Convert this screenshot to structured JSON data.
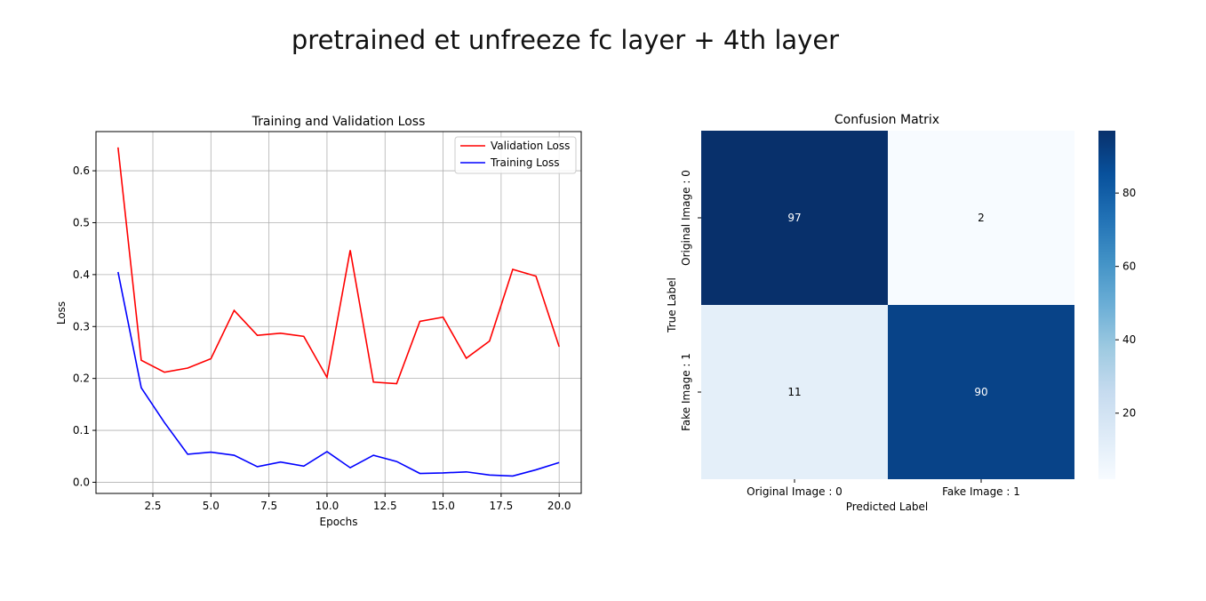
{
  "page": {
    "title": "pretrained et unfreeze fc layer + 4th layer"
  },
  "chart_data": [
    {
      "type": "line",
      "title": "Training and Validation Loss",
      "xlabel": "Epochs",
      "ylabel": "Loss",
      "xlim": [
        0.05,
        20.95
      ],
      "ylim": [
        -0.0215,
        0.6755
      ],
      "xticks": [
        2.5,
        5.0,
        7.5,
        10.0,
        12.5,
        15.0,
        17.5,
        20.0
      ],
      "xtick_labels": [
        "2.5",
        "5.0",
        "7.5",
        "10.0",
        "12.5",
        "15.0",
        "17.5",
        "20.0"
      ],
      "yticks": [
        0.0,
        0.1,
        0.2,
        0.3,
        0.4,
        0.5,
        0.6
      ],
      "ytick_labels": [
        "0.0",
        "0.1",
        "0.2",
        "0.3",
        "0.4",
        "0.5",
        "0.6"
      ],
      "grid": true,
      "legend_position": "top-right",
      "x": [
        1,
        2,
        3,
        4,
        5,
        6,
        7,
        8,
        9,
        10,
        11,
        12,
        13,
        14,
        15,
        16,
        17,
        18,
        19,
        20
      ],
      "series": [
        {
          "name": "Validation Loss",
          "color": "#ff0000",
          "values": [
            0.645,
            0.235,
            0.212,
            0.22,
            0.238,
            0.331,
            0.283,
            0.287,
            0.281,
            0.202,
            0.447,
            0.193,
            0.19,
            0.31,
            0.318,
            0.239,
            0.272,
            0.41,
            0.397,
            0.261
          ]
        },
        {
          "name": "Training Loss",
          "color": "#0000ff",
          "values": [
            0.405,
            0.182,
            0.115,
            0.054,
            0.058,
            0.052,
            0.03,
            0.039,
            0.031,
            0.059,
            0.028,
            0.052,
            0.04,
            0.017,
            0.018,
            0.02,
            0.014,
            0.012,
            0.024,
            0.038
          ]
        }
      ]
    },
    {
      "type": "heatmap",
      "title": "Confusion Matrix",
      "xlabel": "Predicted Label",
      "ylabel": "True Label",
      "x_categories": [
        "Original Image : 0",
        "Fake Image : 1"
      ],
      "y_categories": [
        "Original Image : 0",
        "Fake Image : 1"
      ],
      "values": [
        [
          97,
          2
        ],
        [
          11,
          90
        ]
      ],
      "colormap": "Blues",
      "colorbar_range": [
        2,
        97
      ],
      "colorbar_ticks": [
        20,
        40,
        60,
        80
      ],
      "colorbar_tick_labels": [
        "20",
        "40",
        "60",
        "80"
      ]
    }
  ]
}
